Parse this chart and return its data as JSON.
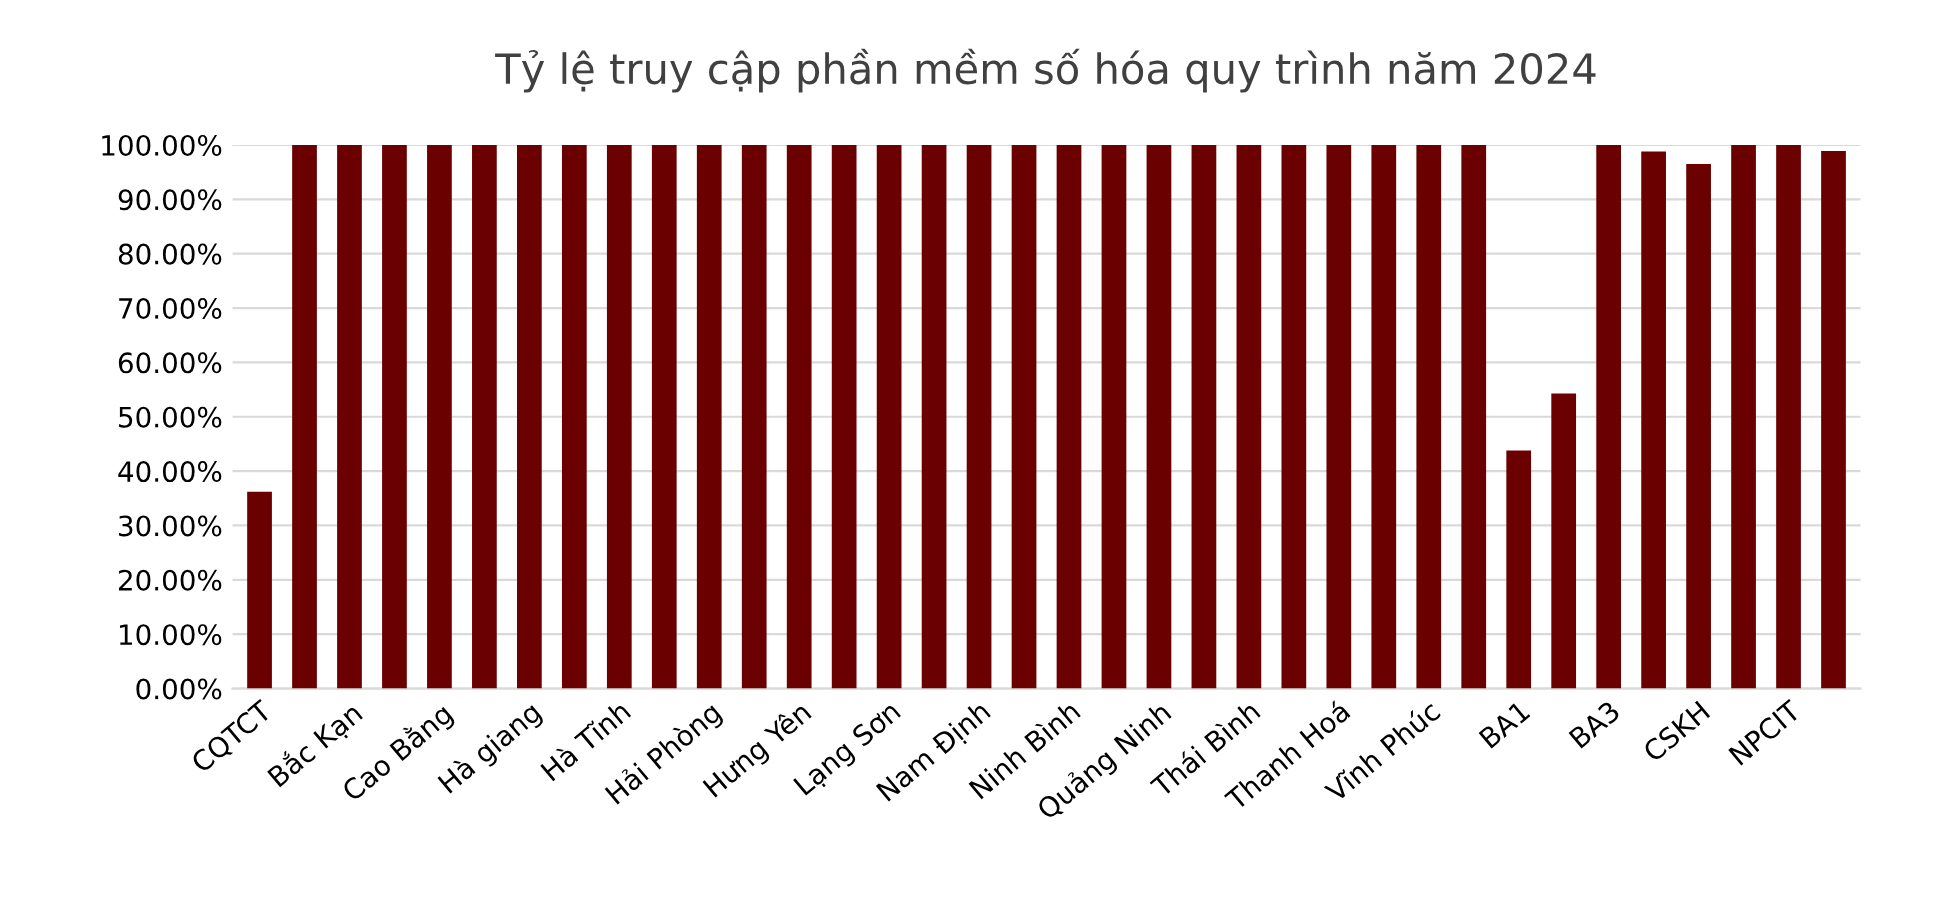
{
  "chart_data": {
    "type": "bar",
    "title": "Tỷ lệ truy cập phần mềm số hóa quy trình năm 2024",
    "categories": [
      "CQTCT",
      null,
      "Bắc Kạn",
      null,
      "Cao Bằng",
      null,
      "Hà giang",
      null,
      "Hà Tĩnh",
      null,
      "Hải Phòng",
      null,
      "Hưng Yên",
      null,
      "Lạng Sơn",
      null,
      "Nam Định",
      null,
      "Ninh Bình",
      null,
      "Quảng Ninh",
      null,
      "Thái Bình",
      null,
      "Thanh Hoá",
      null,
      "Vĩnh Phúc",
      null,
      "BA1",
      null,
      "BA3",
      null,
      "CSKH",
      null,
      "NPCIT",
      null
    ],
    "values": [
      36.2,
      100,
      100,
      100,
      100,
      100,
      100,
      100,
      100,
      100,
      100,
      100,
      100,
      100,
      100,
      100,
      100,
      100,
      100,
      100,
      100,
      100,
      100,
      100,
      100,
      100,
      100,
      100,
      43.8,
      54.3,
      100,
      98.8,
      96.5,
      100,
      100,
      98.9
    ],
    "color": "#6b0000",
    "ylim": [
      0,
      100
    ],
    "yticks": [
      {
        "value": 0,
        "label": "0.00%"
      },
      {
        "value": 10,
        "label": "10.00%"
      },
      {
        "value": 20,
        "label": "20.00%"
      },
      {
        "value": 30,
        "label": "30.00%"
      },
      {
        "value": 40,
        "label": "40.00%"
      },
      {
        "value": 50,
        "label": "50.00%"
      },
      {
        "value": 60,
        "label": "60.00%"
      },
      {
        "value": 70,
        "label": "70.00%"
      },
      {
        "value": 80,
        "label": "80.00%"
      },
      {
        "value": 90,
        "label": "90.00%"
      },
      {
        "value": 100,
        "label": "100.00%"
      }
    ],
    "grid": "y",
    "legend": false
  }
}
